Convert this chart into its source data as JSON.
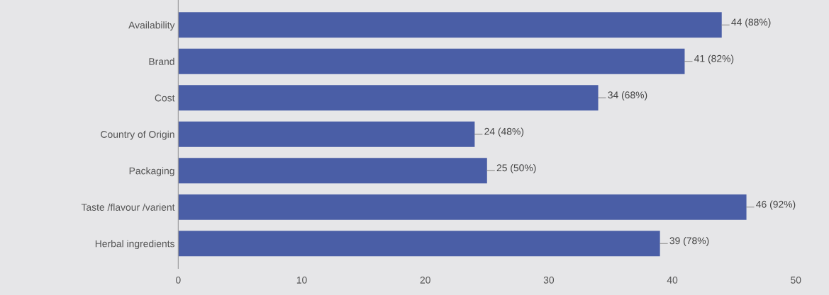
{
  "chart_data": {
    "type": "bar",
    "orientation": "horizontal",
    "categories": [
      "Availability",
      "Brand",
      "Cost",
      "Country of Origin",
      "Packaging",
      "Taste /flavour /varient",
      "Herbal ingredients"
    ],
    "values": [
      44,
      41,
      34,
      24,
      25,
      46,
      39
    ],
    "value_labels": [
      "44 (88%)",
      "41 (82%)",
      "34 (68%)",
      "24 (48%)",
      "25 (50%)",
      "46 (92%)",
      "39 (78%)"
    ],
    "color": "#4a5ea6",
    "xlim": [
      0,
      50
    ],
    "xticks": [
      0,
      10,
      20,
      30,
      40,
      50
    ],
    "grid": false
  }
}
